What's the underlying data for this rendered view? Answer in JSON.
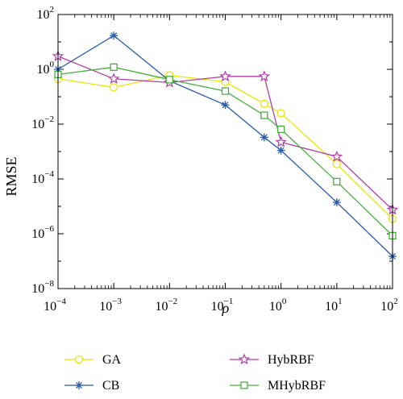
{
  "chart_data": {
    "type": "line",
    "title": "",
    "xlabel": "ρ",
    "ylabel": "RMSE",
    "xscale": "log",
    "yscale": "log",
    "xlim": [
      0.0001,
      100
    ],
    "ylim": [
      1e-08,
      100
    ],
    "grid": false,
    "legend_position": "bottom",
    "x_tick_labels": [
      {
        "base": "10",
        "exp": "−4"
      },
      {
        "base": "10",
        "exp": "−3"
      },
      {
        "base": "10",
        "exp": "−2"
      },
      {
        "base": "10",
        "exp": "−1"
      },
      {
        "base": "10",
        "exp": "0"
      },
      {
        "base": "10",
        "exp": "1"
      },
      {
        "base": "10",
        "exp": "2"
      }
    ],
    "y_tick_labels": [
      {
        "base": "10",
        "exp": "−8"
      },
      {
        "base": "10",
        "exp": "−6"
      },
      {
        "base": "10",
        "exp": "−4"
      },
      {
        "base": "10",
        "exp": "−2"
      },
      {
        "base": "10",
        "exp": "0"
      },
      {
        "base": "10",
        "exp": "2"
      }
    ],
    "x": [
      0.0001,
      0.001,
      0.01,
      0.1,
      0.5,
      1,
      10,
      100
    ],
    "series": [
      {
        "name": "GA",
        "color": "#e8e800",
        "marker": "circle",
        "values": [
          0.45,
          0.22,
          0.6,
          0.35,
          0.055,
          0.025,
          0.00035,
          3.5e-06
        ]
      },
      {
        "name": "CB",
        "color": "#2a5caa",
        "marker": "asterisk",
        "values": [
          1.0,
          17,
          0.38,
          0.05,
          0.0033,
          0.0011,
          1.4e-05,
          1.5e-07
        ]
      },
      {
        "name": "HybRBF",
        "color": "#b03fa5",
        "marker": "star",
        "values": [
          3.0,
          0.45,
          0.33,
          0.55,
          0.55,
          0.0022,
          0.00065,
          7.5e-06
        ]
      },
      {
        "name": "MHybRBF",
        "color": "#4aae3e",
        "marker": "square",
        "values": [
          0.65,
          1.2,
          0.42,
          0.16,
          0.021,
          0.0065,
          8e-05,
          8.5e-07
        ]
      }
    ]
  }
}
